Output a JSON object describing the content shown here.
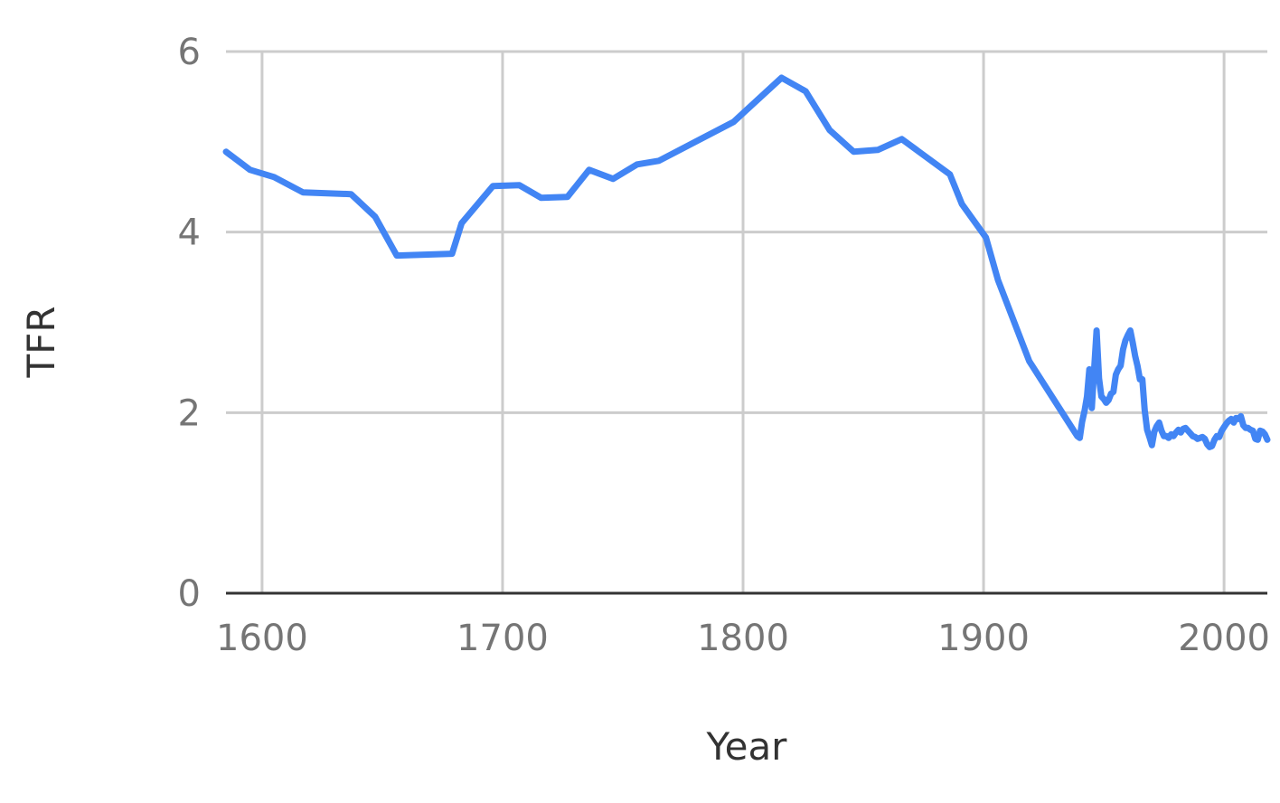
{
  "chart_data": {
    "type": "line",
    "title": "",
    "xlabel": "Year",
    "ylabel": "TFR",
    "xlim": [
      1585,
      2018
    ],
    "ylim": [
      0,
      6
    ],
    "xticks": [
      1600,
      1700,
      1800,
      1900,
      2000
    ],
    "yticks": [
      0,
      2,
      4,
      6
    ],
    "grid": true,
    "legend": "none",
    "colors": {
      "series": "#4285f4",
      "grid": "#cccccc",
      "baseline": "#333333",
      "tick_text": "#757575",
      "axis_title": "#333333"
    },
    "series": [
      {
        "x": [
          1585,
          1595,
          1605,
          1617,
          1637,
          1647,
          1656,
          1679,
          1683,
          1696,
          1707,
          1716,
          1727,
          1736,
          1746,
          1756,
          1765,
          1796,
          1816,
          1826,
          1836,
          1846,
          1856,
          1866,
          1886,
          1891,
          1901,
          1906,
          1919,
          1938,
          1939,
          1940,
          1941,
          1942,
          1943,
          1944,
          1945,
          1946,
          1947,
          1948,
          1949,
          1950,
          1951,
          1952,
          1953,
          1954,
          1955,
          1956,
          1957,
          1958,
          1959,
          1960,
          1961,
          1962,
          1963,
          1964,
          1965,
          1966,
          1967,
          1968,
          1969,
          1970,
          1971,
          1972,
          1973,
          1974,
          1975,
          1976,
          1977,
          1978,
          1979,
          1980,
          1981,
          1982,
          1983,
          1984,
          1985,
          1986,
          1987,
          1988,
          1989,
          1990,
          1991,
          1992,
          1993,
          1994,
          1995,
          1996,
          1997,
          1998,
          1999,
          2000,
          2001,
          2002,
          2003,
          2004,
          2005,
          2006,
          2007,
          2008,
          2009,
          2010,
          2011,
          2012,
          2013,
          2014,
          2015,
          2016,
          2017,
          2018
        ],
        "y": [
          4.89,
          4.69,
          4.61,
          4.44,
          4.42,
          4.17,
          3.74,
          3.76,
          4.1,
          4.51,
          4.52,
          4.38,
          4.39,
          4.69,
          4.59,
          4.75,
          4.79,
          5.22,
          5.71,
          5.56,
          5.13,
          4.89,
          4.91,
          5.03,
          4.64,
          4.31,
          3.94,
          3.47,
          2.57,
          1.78,
          1.74,
          1.72,
          1.9,
          2.02,
          2.18,
          2.48,
          2.05,
          2.48,
          2.91,
          2.38,
          2.18,
          2.15,
          2.11,
          2.14,
          2.21,
          2.23,
          2.42,
          2.48,
          2.52,
          2.7,
          2.8,
          2.86,
          2.91,
          2.78,
          2.63,
          2.52,
          2.37,
          2.37,
          2.03,
          1.81,
          1.73,
          1.64,
          1.79,
          1.85,
          1.89,
          1.8,
          1.74,
          1.74,
          1.72,
          1.76,
          1.74,
          1.78,
          1.81,
          1.78,
          1.82,
          1.83,
          1.8,
          1.77,
          1.74,
          1.73,
          1.71,
          1.72,
          1.73,
          1.71,
          1.65,
          1.62,
          1.63,
          1.7,
          1.74,
          1.73,
          1.8,
          1.84,
          1.88,
          1.91,
          1.93,
          1.89,
          1.94,
          1.93,
          1.96,
          1.86,
          1.83,
          1.83,
          1.81,
          1.8,
          1.71,
          1.7,
          1.8,
          1.79,
          1.76,
          1.7
        ]
      }
    ]
  }
}
